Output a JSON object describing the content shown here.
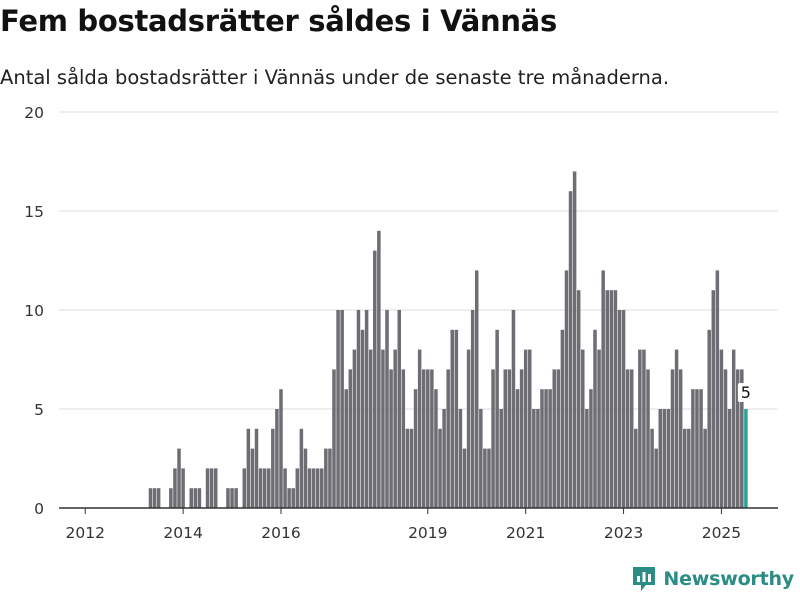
{
  "header": {
    "title": "Fem bostadsrätter såldes i Vännäs",
    "subtitle": "Antal sålda bostadsrätter i Vännäs under de senaste tre månaderna."
  },
  "brand": {
    "name": "Newsworthy",
    "icon": "newsworthy-logo-icon",
    "color": "#2b8c86"
  },
  "colors": {
    "bar": "#6e6d73",
    "highlight": "#27a39a",
    "grid": "#dddddd",
    "axis": "#333333",
    "text": "#333333"
  },
  "chart_data": {
    "type": "bar",
    "x_start": "2011-07",
    "x_step": "month",
    "xticks": [
      "2012",
      "2014",
      "2016",
      "2019",
      "2021",
      "2023",
      "2025"
    ],
    "ylim": [
      0,
      20
    ],
    "yticks": [
      0,
      5,
      10,
      15,
      20
    ],
    "grid": true,
    "highlight_last": true,
    "last_label": "5",
    "values": [
      0,
      0,
      0,
      0,
      0,
      0,
      0,
      0,
      0,
      0,
      0,
      0,
      0,
      0,
      0,
      0,
      0,
      0,
      0,
      0,
      0,
      0,
      1,
      1,
      1,
      0,
      0,
      1,
      2,
      3,
      2,
      0,
      1,
      1,
      1,
      0,
      2,
      2,
      2,
      0,
      0,
      1,
      1,
      1,
      0,
      2,
      4,
      3,
      4,
      2,
      2,
      2,
      4,
      5,
      6,
      2,
      1,
      1,
      2,
      4,
      3,
      2,
      2,
      2,
      2,
      3,
      3,
      7,
      10,
      10,
      6,
      7,
      8,
      10,
      9,
      10,
      8,
      13,
      14,
      8,
      10,
      7,
      8,
      10,
      7,
      4,
      4,
      6,
      8,
      7,
      7,
      7,
      6,
      4,
      5,
      7,
      9,
      9,
      5,
      3,
      8,
      10,
      12,
      5,
      3,
      3,
      7,
      9,
      5,
      7,
      7,
      10,
      6,
      7,
      8,
      8,
      5,
      5,
      6,
      6,
      6,
      7,
      7,
      9,
      12,
      16,
      17,
      11,
      8,
      5,
      6,
      9,
      8,
      12,
      11,
      11,
      11,
      10,
      10,
      7,
      7,
      4,
      8,
      8,
      7,
      4,
      3,
      5,
      5,
      5,
      7,
      8,
      7,
      4,
      4,
      6,
      6,
      6,
      4,
      9,
      11,
      12,
      8,
      7,
      5,
      8,
      7,
      7,
      5
    ]
  }
}
